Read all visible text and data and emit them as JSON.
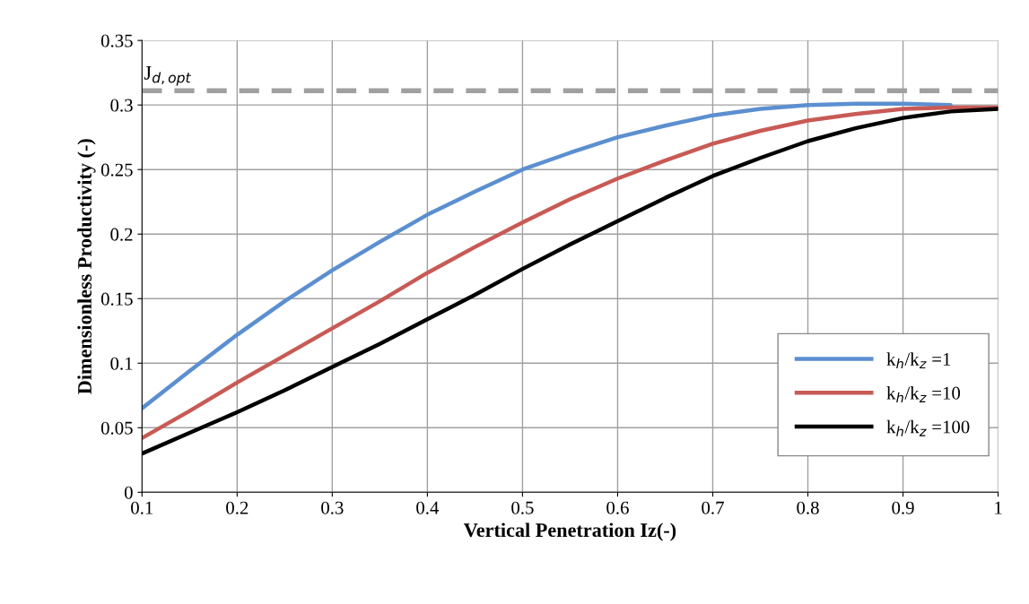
{
  "chart_data": {
    "type": "line",
    "xlabel": "Vertical Penetration Iz(-)",
    "ylabel": "Dimensionless Productivity (-)",
    "x": [
      0.1,
      0.15,
      0.2,
      0.25,
      0.3,
      0.35,
      0.4,
      0.45,
      0.5,
      0.55,
      0.6,
      0.65,
      0.7,
      0.75,
      0.8,
      0.85,
      0.9,
      0.95,
      1.0
    ],
    "series": [
      {
        "name": "k$_{h}$/k$_{z}$ =1",
        "color": "#5b8fd0",
        "values": [
          0.065,
          0.094,
          0.122,
          0.148,
          0.172,
          0.194,
          0.215,
          0.233,
          0.25,
          0.263,
          0.275,
          0.284,
          0.292,
          0.297,
          0.3,
          0.301,
          0.301,
          0.3,
          null
        ]
      },
      {
        "name": "k$_{h}$/k$_{z}$ =10",
        "color": "#c85a55",
        "values": [
          0.042,
          0.063,
          0.085,
          0.106,
          0.127,
          0.148,
          0.17,
          0.19,
          0.209,
          0.227,
          0.243,
          0.257,
          0.27,
          0.28,
          0.288,
          0.293,
          0.297,
          0.298,
          0.298
        ]
      },
      {
        "name": "k$_{h}$/k$_{z}$ =100",
        "color": "#000000",
        "values": [
          0.03,
          0.046,
          0.062,
          0.079,
          0.097,
          0.115,
          0.134,
          0.153,
          0.173,
          0.192,
          0.21,
          0.228,
          0.245,
          0.259,
          0.272,
          0.282,
          0.29,
          0.295,
          0.297
        ]
      }
    ],
    "xlim": [
      0.1,
      1
    ],
    "xticks": [
      0.1,
      0.2,
      0.3,
      0.4,
      0.5,
      0.6,
      0.7,
      0.8,
      0.9,
      1
    ],
    "ylim": [
      0,
      0.35
    ],
    "yticks": [
      0,
      0.05,
      0.1,
      0.15,
      0.2,
      0.25,
      0.3,
      0.35
    ],
    "ref_lines": [
      {
        "axis": "y",
        "value": 0.311,
        "label": "J$_{d,opt}$",
        "color": "#a0a0a0",
        "line_style": "dashed"
      }
    ],
    "grid": true,
    "legend": "bottom right",
    "marker": "none",
    "line_style": "solid"
  }
}
